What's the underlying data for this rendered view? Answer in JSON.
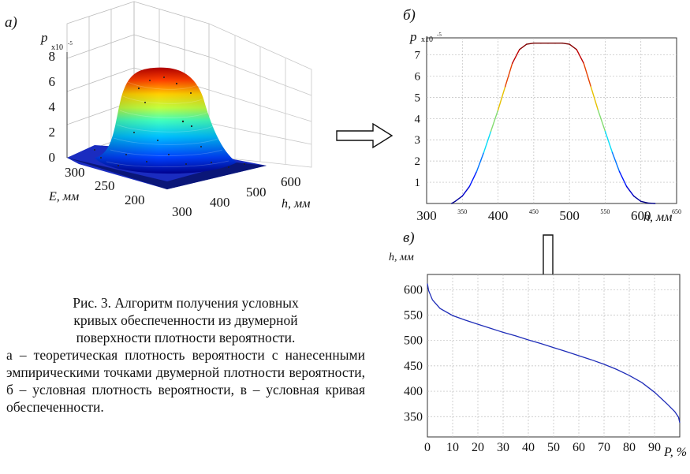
{
  "panels": {
    "a": {
      "label": "a)",
      "z_axis_label": "p",
      "z_scale": "x10",
      "z_exponent": "-5",
      "z_ticks": [
        "0",
        "2",
        "4",
        "6",
        "8"
      ],
      "e_axis_label": "E, мм",
      "e_ticks": [
        "300",
        "250",
        "200"
      ],
      "h_axis_label": "h, мм",
      "h_ticks": [
        "300",
        "400",
        "500",
        "600"
      ]
    },
    "b": {
      "label": "б)",
      "y_axis_label": "p",
      "y_scale": "x10",
      "y_exponent": "-5",
      "x_axis_label": "h, мм"
    },
    "v": {
      "label": "в)",
      "y_axis_label": "h, мм",
      "x_axis_label": "P, %"
    }
  },
  "caption": {
    "title_lines": [
      "Рис. 3. Алгоритм получения условных",
      "кривых обеспеченности из двумерной",
      "поверхности плотности вероятности."
    ],
    "description": "а – теоретическая плотность вероятности с нанесенными эмпирическими точками двумерной плотности вероятности, б – условная плотность вероятности, в – условная кривая обеспеченности."
  },
  "chart_data": [
    {
      "type": "line",
      "panel": "б",
      "title": "",
      "xlabel": "h, мм",
      "ylabel": "p x10-5",
      "xlim": [
        300,
        650
      ],
      "ylim": [
        0,
        7.8
      ],
      "x_ticks_major": [
        "300",
        "400",
        "500",
        "600"
      ],
      "x_ticks_minor": [
        "350",
        "450",
        "550",
        "650"
      ],
      "y_ticks": [
        "1",
        "2",
        "3",
        "4",
        "5",
        "6",
        "7"
      ],
      "grid": true,
      "x": [
        335,
        340,
        350,
        360,
        370,
        380,
        390,
        400,
        410,
        420,
        430,
        440,
        450,
        460,
        470,
        480,
        490,
        500,
        510,
        520,
        530,
        540,
        550,
        560,
        570,
        580,
        590,
        600,
        610,
        620
      ],
      "values": [
        0.0,
        0.1,
        0.35,
        0.8,
        1.5,
        2.4,
        3.4,
        4.4,
        5.5,
        6.6,
        7.25,
        7.5,
        7.55,
        7.55,
        7.55,
        7.55,
        7.55,
        7.5,
        7.25,
        6.6,
        5.5,
        4.4,
        3.4,
        2.4,
        1.5,
        0.8,
        0.35,
        0.1,
        0.02,
        0.0
      ]
    },
    {
      "type": "line",
      "panel": "в",
      "title": "",
      "xlabel": "P, %",
      "ylabel": "h, мм",
      "xlim": [
        0,
        100
      ],
      "ylim": [
        310,
        630
      ],
      "x_ticks": [
        "0",
        "10",
        "20",
        "30",
        "40",
        "50",
        "60",
        "70",
        "80",
        "90"
      ],
      "y_ticks": [
        "350",
        "400",
        "450",
        "500",
        "550",
        "600"
      ],
      "grid": true,
      "x": [
        0,
        0.5,
        2,
        5,
        10,
        15,
        20,
        25,
        30,
        35,
        40,
        45,
        50,
        55,
        60,
        65,
        70,
        75,
        80,
        85,
        90,
        95,
        98,
        99.5,
        100
      ],
      "values": [
        612,
        598,
        580,
        563,
        549,
        540,
        532,
        524,
        516,
        509,
        501,
        494,
        486,
        478,
        470,
        462,
        453,
        443,
        431,
        417,
        398,
        375,
        360,
        349,
        338
      ]
    },
    {
      "type": "surface",
      "panel": "а",
      "title": "",
      "xlabel": "h, мм",
      "ylabel": "E, мм",
      "zlabel": "p x10-5",
      "xlim": [
        300,
        650
      ],
      "ylim": [
        170,
        320
      ],
      "zlim": [
        0,
        8
      ],
      "peak_value": 7.5
    }
  ]
}
